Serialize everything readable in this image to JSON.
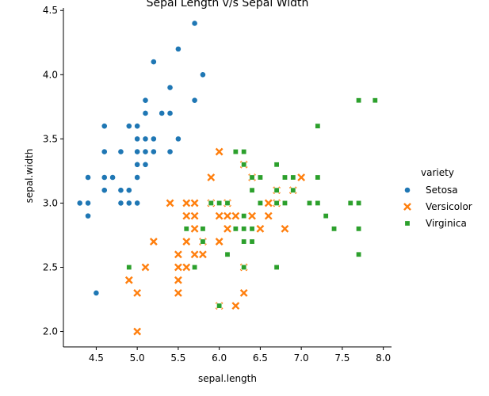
{
  "chart_data": {
    "type": "scatter",
    "title": "Sepal Length v/s Sepal Width",
    "xlabel": "sepal.length",
    "ylabel": "sepal.width",
    "xlim": [
      4.1,
      8.1
    ],
    "ylim": [
      1.88,
      4.52
    ],
    "xticks": [
      4.5,
      5.0,
      5.5,
      6.0,
      6.5,
      7.0,
      7.5,
      8.0
    ],
    "xtick_labels": [
      "4.5",
      "5.0",
      "5.5",
      "6.0",
      "6.5",
      "7.0",
      "7.5",
      "8.0"
    ],
    "yticks": [
      2.0,
      2.5,
      3.0,
      3.5,
      4.0,
      4.5
    ],
    "ytick_labels": [
      "2.0",
      "2.5",
      "3.0",
      "3.5",
      "4.0",
      "4.5"
    ],
    "grid": false,
    "legend_title": "variety",
    "legend_position": "right",
    "series": [
      {
        "name": "Setosa",
        "color": "#1f77b4",
        "marker": "circle",
        "points": [
          [
            4.3,
            3.0
          ],
          [
            4.4,
            2.9
          ],
          [
            4.4,
            3.0
          ],
          [
            4.4,
            3.2
          ],
          [
            4.5,
            2.3
          ],
          [
            4.6,
            3.1
          ],
          [
            4.6,
            3.2
          ],
          [
            4.6,
            3.4
          ],
          [
            4.6,
            3.6
          ],
          [
            4.7,
            3.2
          ],
          [
            4.8,
            3.0
          ],
          [
            4.8,
            3.1
          ],
          [
            4.8,
            3.4
          ],
          [
            4.9,
            3.0
          ],
          [
            4.9,
            3.1
          ],
          [
            4.9,
            3.6
          ],
          [
            5.0,
            3.0
          ],
          [
            5.0,
            3.2
          ],
          [
            5.0,
            3.3
          ],
          [
            5.0,
            3.4
          ],
          [
            5.0,
            3.5
          ],
          [
            5.0,
            3.6
          ],
          [
            5.1,
            3.3
          ],
          [
            5.1,
            3.4
          ],
          [
            5.1,
            3.5
          ],
          [
            5.1,
            3.7
          ],
          [
            5.1,
            3.8
          ],
          [
            5.2,
            3.4
          ],
          [
            5.2,
            3.5
          ],
          [
            5.2,
            4.1
          ],
          [
            5.3,
            3.7
          ],
          [
            5.4,
            3.4
          ],
          [
            5.4,
            3.7
          ],
          [
            5.4,
            3.9
          ],
          [
            5.5,
            3.5
          ],
          [
            5.5,
            4.2
          ],
          [
            5.7,
            3.8
          ],
          [
            5.7,
            4.4
          ],
          [
            5.8,
            4.0
          ]
        ]
      },
      {
        "name": "Versicolor",
        "color": "#ff7f0e",
        "marker": "x",
        "points": [
          [
            4.9,
            2.4
          ],
          [
            5.0,
            2.0
          ],
          [
            5.0,
            2.3
          ],
          [
            5.1,
            2.5
          ],
          [
            5.2,
            2.7
          ],
          [
            5.4,
            3.0
          ],
          [
            5.5,
            2.3
          ],
          [
            5.5,
            2.4
          ],
          [
            5.5,
            2.5
          ],
          [
            5.5,
            2.6
          ],
          [
            5.6,
            2.5
          ],
          [
            5.6,
            2.7
          ],
          [
            5.6,
            2.9
          ],
          [
            5.6,
            3.0
          ],
          [
            5.7,
            2.6
          ],
          [
            5.7,
            2.8
          ],
          [
            5.7,
            2.9
          ],
          [
            5.7,
            3.0
          ],
          [
            5.8,
            2.6
          ],
          [
            5.8,
            2.7
          ],
          [
            5.9,
            3.0
          ],
          [
            5.9,
            3.2
          ],
          [
            6.0,
            2.2
          ],
          [
            6.0,
            2.7
          ],
          [
            6.0,
            2.9
          ],
          [
            6.0,
            3.4
          ],
          [
            6.1,
            2.8
          ],
          [
            6.1,
            2.9
          ],
          [
            6.1,
            3.0
          ],
          [
            6.2,
            2.2
          ],
          [
            6.2,
            2.9
          ],
          [
            6.3,
            2.3
          ],
          [
            6.3,
            2.5
          ],
          [
            6.3,
            3.3
          ],
          [
            6.4,
            2.9
          ],
          [
            6.4,
            3.2
          ],
          [
            6.5,
            2.8
          ],
          [
            6.6,
            2.9
          ],
          [
            6.6,
            3.0
          ],
          [
            6.7,
            3.0
          ],
          [
            6.7,
            3.1
          ],
          [
            6.8,
            2.8
          ],
          [
            6.9,
            3.1
          ],
          [
            7.0,
            3.2
          ]
        ]
      },
      {
        "name": "Virginica",
        "color": "#2ca02c",
        "marker": "square",
        "points": [
          [
            4.9,
            2.5
          ],
          [
            5.6,
            2.8
          ],
          [
            5.7,
            2.5
          ],
          [
            5.8,
            2.7
          ],
          [
            5.8,
            2.8
          ],
          [
            5.9,
            3.0
          ],
          [
            6.0,
            2.2
          ],
          [
            6.0,
            3.0
          ],
          [
            6.1,
            2.6
          ],
          [
            6.1,
            3.0
          ],
          [
            6.2,
            2.8
          ],
          [
            6.2,
            3.4
          ],
          [
            6.3,
            2.5
          ],
          [
            6.3,
            2.7
          ],
          [
            6.3,
            2.8
          ],
          [
            6.3,
            2.9
          ],
          [
            6.3,
            3.3
          ],
          [
            6.3,
            3.4
          ],
          [
            6.4,
            2.7
          ],
          [
            6.4,
            2.8
          ],
          [
            6.4,
            3.1
          ],
          [
            6.4,
            3.2
          ],
          [
            6.5,
            3.0
          ],
          [
            6.5,
            3.2
          ],
          [
            6.7,
            2.5
          ],
          [
            6.7,
            3.0
          ],
          [
            6.7,
            3.1
          ],
          [
            6.7,
            3.3
          ],
          [
            6.8,
            3.0
          ],
          [
            6.8,
            3.2
          ],
          [
            6.9,
            3.1
          ],
          [
            6.9,
            3.2
          ],
          [
            7.1,
            3.0
          ],
          [
            7.2,
            3.0
          ],
          [
            7.2,
            3.2
          ],
          [
            7.2,
            3.6
          ],
          [
            7.3,
            2.9
          ],
          [
            7.4,
            2.8
          ],
          [
            7.6,
            3.0
          ],
          [
            7.7,
            2.6
          ],
          [
            7.7,
            2.8
          ],
          [
            7.7,
            3.0
          ],
          [
            7.7,
            3.8
          ],
          [
            7.9,
            3.8
          ]
        ]
      }
    ]
  }
}
